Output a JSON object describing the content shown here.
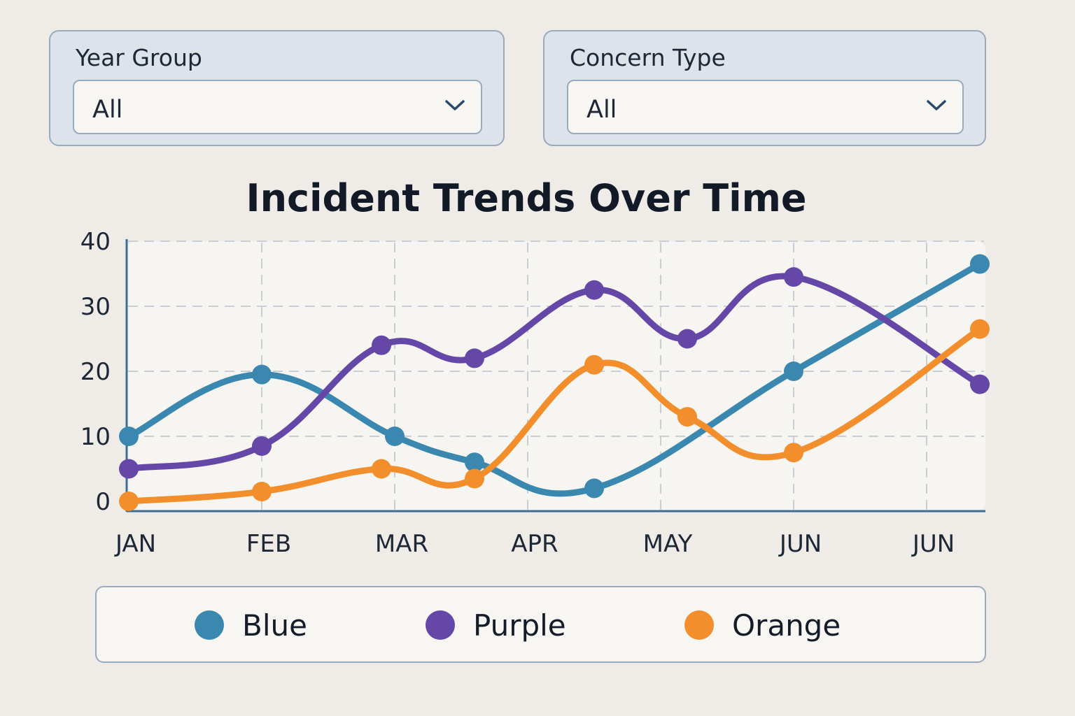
{
  "filters": {
    "year_group": {
      "label": "Year Group",
      "value": "All"
    },
    "concern_type": {
      "label": "Concern Type",
      "value": "All"
    }
  },
  "chart_data": {
    "type": "line",
    "title": "Incident Trends Over Time",
    "xlabel": "",
    "ylabel": "",
    "x_tick_labels": [
      "JAN",
      "FEB",
      "MAR",
      "APR",
      "MAY",
      "JUN",
      "JUN"
    ],
    "y_tick_labels": [
      "0",
      "10",
      "20",
      "30",
      "40"
    ],
    "ylim": [
      0,
      40
    ],
    "xlim": [
      0,
      6.4
    ],
    "grid": true,
    "legend_position": "bottom",
    "series": [
      {
        "name": "Blue",
        "color": "#3a87b0",
        "points": [
          [
            0,
            10
          ],
          [
            1,
            19.5
          ],
          [
            2,
            10
          ],
          [
            2.6,
            6
          ],
          [
            3.5,
            2
          ],
          [
            5,
            20
          ],
          [
            6.4,
            36.5
          ]
        ]
      },
      {
        "name": "Purple",
        "color": "#6447a6",
        "points": [
          [
            0,
            5
          ],
          [
            1,
            8.5
          ],
          [
            1.9,
            24
          ],
          [
            2.6,
            22
          ],
          [
            3.5,
            32.5
          ],
          [
            4.2,
            25
          ],
          [
            5,
            34.5
          ],
          [
            6.4,
            18
          ]
        ]
      },
      {
        "name": "Orange",
        "color": "#f28e2b",
        "points": [
          [
            0,
            0
          ],
          [
            1,
            1.5
          ],
          [
            1.9,
            5
          ],
          [
            2.6,
            3.5
          ],
          [
            3.5,
            21
          ],
          [
            4.2,
            13
          ],
          [
            5,
            7.5
          ],
          [
            6.4,
            26.5
          ]
        ]
      }
    ]
  },
  "legend": {
    "items": [
      {
        "label": "Blue",
        "color": "#3a87b0"
      },
      {
        "label": "Purple",
        "color": "#6447a6"
      },
      {
        "label": "Orange",
        "color": "#f28e2b"
      }
    ]
  }
}
